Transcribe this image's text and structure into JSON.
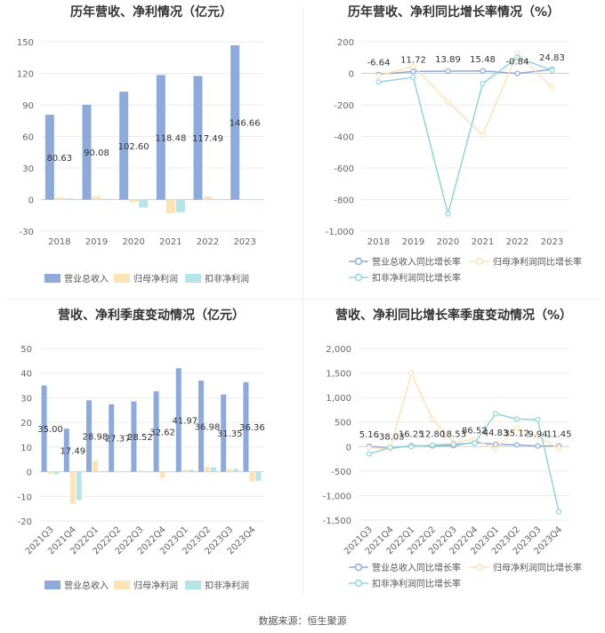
{
  "footer": {
    "source": "数据来源：恒生聚源"
  },
  "chart_data": [
    {
      "type": "bar",
      "title": "历年营收、净利情况（亿元）",
      "categories": [
        "2018",
        "2019",
        "2020",
        "2021",
        "2022",
        "2023"
      ],
      "ylim": [
        -30,
        150
      ],
      "yticks": [
        -30,
        0,
        30,
        60,
        90,
        120,
        150
      ],
      "series": [
        {
          "name": "营业总收入",
          "color": "#8eaadb",
          "values": [
            80.63,
            90.08,
            102.6,
            118.48,
            117.49,
            146.66
          ],
          "labels": [
            "80.63",
            "90.08",
            "102.60",
            "118.48",
            "117.49",
            "146.66"
          ]
        },
        {
          "name": "归母净利润",
          "color": "#fde3b5",
          "values": [
            2.0,
            3.0,
            -2.5,
            -13.0,
            3.0,
            -0.3
          ]
        },
        {
          "name": "扣非净利润",
          "color": "#b5e5e8",
          "values": [
            1.0,
            0.8,
            -7.5,
            -12.0,
            -0.5,
            -0.5
          ]
        }
      ],
      "grid": true,
      "legend": "bottom"
    },
    {
      "type": "line",
      "title": "历年营收、净利同比增长率情况（%）",
      "categories": [
        "2018",
        "2019",
        "2020",
        "2021",
        "2022",
        "2023"
      ],
      "ylim": [
        -1000,
        200
      ],
      "yticks": [
        -1000,
        -800,
        -600,
        -400,
        -200,
        0,
        200
      ],
      "series": [
        {
          "name": "营业总收入同比增长率",
          "color": "#8eaadb",
          "values": [
            -6.64,
            11.72,
            13.89,
            15.48,
            -0.84,
            24.83
          ],
          "labels": [
            "-6.64",
            "11.72",
            "13.89",
            "15.48",
            "-0.84",
            "24.83"
          ]
        },
        {
          "name": "归母净利润同比增长率",
          "color": "#fde3b5",
          "values": [
            -15,
            45,
            -180,
            -390,
            130,
            -90
          ]
        },
        {
          "name": "扣非净利润同比增长率",
          "color": "#91d5dc",
          "values": [
            -55,
            -25,
            -890,
            -65,
            100,
            20
          ]
        }
      ],
      "grid": true,
      "legend": "bottom"
    },
    {
      "type": "bar",
      "title": "营收、净利季度变动情况（亿元）",
      "categories": [
        "2021Q3",
        "2021Q4",
        "2022Q1",
        "2022Q2",
        "2022Q3",
        "2022Q4",
        "2023Q1",
        "2023Q2",
        "2023Q3",
        "2023Q4"
      ],
      "ylim": [
        -20,
        50
      ],
      "yticks": [
        -20,
        -10,
        0,
        10,
        20,
        30,
        40,
        50
      ],
      "series": [
        {
          "name": "营业总收入",
          "color": "#8eaadb",
          "values": [
            35.0,
            17.49,
            28.98,
            27.37,
            28.52,
            32.62,
            41.97,
            36.98,
            31.35,
            36.36
          ],
          "labels": [
            "35.00",
            "17.49",
            "28.98",
            "27.37",
            "28.52",
            "32.62",
            "41.97",
            "36.98",
            "31.35",
            "36.36"
          ]
        },
        {
          "name": "归母净利润",
          "color": "#fde3b5",
          "values": [
            -1.0,
            -13.0,
            4.5,
            0.2,
            0.5,
            -2.5,
            0.8,
            2.0,
            1.2,
            -4.0
          ]
        },
        {
          "name": "扣非净利润",
          "color": "#b5e5e8",
          "values": [
            -1.0,
            -11.5,
            0.2,
            0.1,
            0.2,
            0.2,
            0.8,
            1.8,
            1.2,
            -3.7
          ]
        }
      ],
      "grid": true,
      "legend": "bottom"
    },
    {
      "type": "line",
      "title": "营收、净利同比增长率季度变动情况（%）",
      "categories": [
        "2021Q3",
        "2021Q4",
        "2022Q1",
        "2022Q2",
        "2022Q3",
        "2022Q4",
        "2023Q1",
        "2023Q2",
        "2023Q3",
        "2023Q4"
      ],
      "ylim": [
        -1500,
        2000
      ],
      "yticks": [
        -1500,
        -1000,
        -500,
        0,
        500,
        1000,
        1500,
        2000
      ],
      "series": [
        {
          "name": "营业总收入同比增长率",
          "color": "#8eaadb",
          "values": [
            5.16,
            -38.03,
            16.25,
            12.8,
            18.53,
            86.52,
            44.83,
            35.12,
            9.94,
            11.45
          ],
          "labels": [
            "5.16",
            "-38.03",
            "16.25",
            "12.80",
            "18.53",
            "86.52",
            "44.83",
            "35.12",
            "9.94",
            "11.45"
          ]
        },
        {
          "name": "归母净利润同比增长率",
          "color": "#fde3b5",
          "values": [
            -20,
            -50,
            1500,
            560,
            80,
            150,
            -50,
            380,
            200,
            -40
          ]
        },
        {
          "name": "扣非净利润同比增长率",
          "color": "#91d5dc",
          "values": [
            -150,
            -20,
            0,
            30,
            50,
            70,
            670,
            560,
            550,
            -1330
          ]
        }
      ],
      "grid": true,
      "legend": "bottom"
    }
  ]
}
